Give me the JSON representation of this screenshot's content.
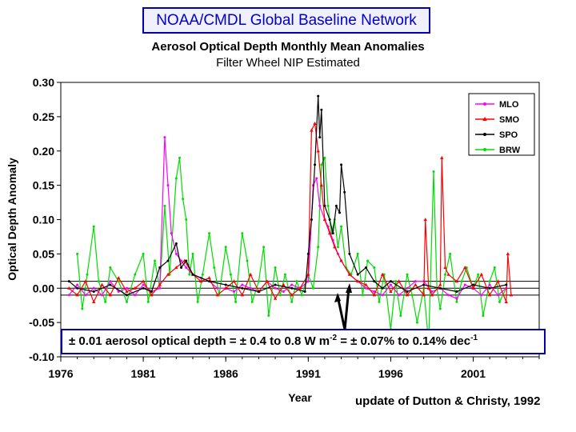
{
  "banner": "NOAA/CMDL Global Baseline Network",
  "footer": "update of Dutton & Christy, 1992",
  "annotation": {
    "p1": "± 0.01 aerosol optical depth = ± 0.4 to 0.8 W m",
    "sup1": "-2",
    "p2": " = ± 0.07% to 0.14% dec",
    "sup2": "-1"
  },
  "chart_data": {
    "type": "line",
    "title": "Aerosol Optical Depth Monthly Mean Anomalies",
    "subtitle": "Filter Wheel NIP Estimated",
    "xlabel": "Year",
    "ylabel": "Optical Depth Anomaly",
    "xlim": [
      1976,
      2005
    ],
    "ylim": [
      -0.1,
      0.3
    ],
    "xticks": [
      "1976",
      "1981",
      "1986",
      "1991",
      "1996",
      "2001"
    ],
    "yticks": [
      "0.30",
      "0.25",
      "0.20",
      "0.15",
      "0.10",
      "0.05",
      "0.00",
      "-0.05",
      "-0.10"
    ],
    "band": [
      -0.01,
      0.01
    ],
    "legend_position": "top-right",
    "colors": {
      "MLO": "#ff00ff",
      "SMO": "#ff0000",
      "SPO": "#000000",
      "BRW": "#00dd00",
      "frame": "#0000b0"
    },
    "series": [
      {
        "name": "MLO",
        "x": [
          1976.5,
          1977,
          1977.5,
          1978,
          1978.5,
          1979,
          1979.5,
          1980,
          1980.5,
          1981,
          1981.5,
          1982,
          1982.3,
          1982.5,
          1982.7,
          1983,
          1983.3,
          1983.6,
          1984,
          1984.5,
          1985,
          1985.5,
          1986,
          1986.5,
          1987,
          1987.5,
          1988,
          1988.5,
          1989,
          1989.5,
          1990,
          1990.5,
          1991,
          1991.3,
          1991.5,
          1991.7,
          1992,
          1992.2,
          1992.5,
          1992.8,
          1993,
          1993.5,
          1994,
          1994.5,
          1995,
          1995.5,
          1996,
          1996.5,
          1997,
          1997.5,
          1998,
          1998.5,
          1999,
          1999.5,
          2000,
          2000.5,
          2001,
          2001.5,
          2002,
          2002.5,
          2003
        ],
        "y": [
          -0.01,
          0.005,
          -0.01,
          0.0,
          -0.01,
          0.01,
          -0.005,
          0.0,
          -0.01,
          0.005,
          -0.005,
          0.0,
          0.22,
          0.15,
          0.08,
          0.05,
          0.04,
          0.03,
          0.02,
          0.015,
          0.01,
          0.0,
          0.0,
          -0.005,
          0.005,
          0.0,
          -0.005,
          0.01,
          0.0,
          -0.005,
          0.005,
          0.0,
          0.01,
          0.15,
          0.16,
          0.12,
          0.1,
          0.09,
          0.07,
          0.05,
          0.04,
          0.02,
          0.01,
          0.0,
          -0.005,
          -0.01,
          0.005,
          -0.01,
          0.0,
          0.01,
          0.01,
          -0.005,
          0.0,
          -0.01,
          -0.015,
          0.005,
          0.0,
          -0.01,
          0.005,
          -0.01,
          0.0
        ]
      },
      {
        "name": "SMO",
        "x": [
          1976.5,
          1977,
          1977.5,
          1978,
          1978.5,
          1979,
          1979.5,
          1980,
          1980.5,
          1981,
          1981.5,
          1982,
          1982.5,
          1983,
          1983.5,
          1984,
          1984.5,
          1985,
          1985.5,
          1986,
          1986.5,
          1987,
          1987.5,
          1988,
          1988.5,
          1989,
          1989.5,
          1990,
          1990.5,
          1991,
          1991.2,
          1991.4,
          1991.6,
          1991.8,
          1992,
          1992.3,
          1992.6,
          1993,
          1993.5,
          1994,
          1994.5,
          1995,
          1995.5,
          1996,
          1996.5,
          1997,
          1997.5,
          1998,
          1998.1,
          1998.3,
          1998.5,
          1999,
          1999.1,
          1999.3,
          1999.5,
          2000,
          2000.5,
          2001,
          2001.5,
          2002,
          2002.5,
          2003,
          2003.1,
          2003.3
        ],
        "y": [
          0.0,
          -0.01,
          0.01,
          -0.02,
          0.005,
          -0.01,
          0.015,
          -0.005,
          0.0,
          0.01,
          -0.01,
          0.005,
          0.02,
          0.03,
          0.04,
          0.02,
          0.01,
          0.015,
          -0.01,
          0.0,
          0.01,
          -0.01,
          0.02,
          -0.005,
          0.01,
          -0.015,
          0.005,
          -0.01,
          0.0,
          0.02,
          0.23,
          0.24,
          0.2,
          0.15,
          0.1,
          0.08,
          0.06,
          0.04,
          0.02,
          0.01,
          0.005,
          -0.01,
          0.02,
          -0.005,
          0.01,
          -0.01,
          0.005,
          -0.01,
          0.1,
          0.0,
          -0.01,
          0.005,
          0.19,
          0.03,
          0.02,
          0.01,
          0.03,
          0.0,
          0.02,
          -0.01,
          0.01,
          -0.02,
          0.05,
          -0.01
        ]
      },
      {
        "name": "SPO",
        "x": [
          1976.5,
          1977,
          1978,
          1979,
          1980,
          1981,
          1981.5,
          1982,
          1982.5,
          1983,
          1983.3,
          1983.6,
          1984,
          1985,
          1986,
          1987,
          1988,
          1989,
          1990,
          1990.8,
          1991,
          1991.2,
          1991.4,
          1991.6,
          1991.7,
          1991.8,
          1992,
          1992.3,
          1992.5,
          1992.7,
          1992.9,
          1993,
          1993.2,
          1993.5,
          1994,
          1994.5,
          1995,
          1995.5,
          1996,
          1997,
          1998,
          1999,
          2000,
          2001,
          2002,
          2003
        ],
        "y": [
          0.01,
          0.0,
          -0.005,
          0.005,
          -0.01,
          0.0,
          -0.005,
          0.03,
          0.04,
          0.065,
          0.03,
          0.04,
          0.02,
          0.01,
          0.005,
          0.0,
          -0.005,
          0.005,
          0.0,
          -0.005,
          0.05,
          0.1,
          0.18,
          0.28,
          0.22,
          0.26,
          0.12,
          0.1,
          0.08,
          0.12,
          0.11,
          0.18,
          0.14,
          0.05,
          0.02,
          0.03,
          0.01,
          0.0,
          0.01,
          -0.005,
          0.005,
          0.0,
          -0.005,
          0.005,
          0.0,
          0.005
        ]
      },
      {
        "name": "BRW",
        "x": [
          1977,
          1977.3,
          1977.6,
          1978,
          1978.3,
          1978.7,
          1979,
          1979.5,
          1980,
          1980.5,
          1981,
          1981.3,
          1981.7,
          1982,
          1982.3,
          1982.6,
          1983,
          1983.2,
          1983.4,
          1983.6,
          1983.8,
          1984,
          1984.3,
          1984.6,
          1985,
          1985.3,
          1985.6,
          1986,
          1986.3,
          1986.6,
          1987,
          1987.3,
          1987.6,
          1988,
          1988.3,
          1988.6,
          1989,
          1989.3,
          1989.6,
          1990,
          1990.3,
          1990.6,
          1991,
          1991.3,
          1991.6,
          1991.8,
          1992,
          1992.2,
          1992.4,
          1992.6,
          1992.8,
          1993,
          1993.3,
          1993.6,
          1994,
          1994.3,
          1994.6,
          1995,
          1995.3,
          1995.6,
          1996,
          1996.3,
          1996.6,
          1997,
          1997.3,
          1997.6,
          1998,
          1998.3,
          1998.6,
          1998.8,
          1999,
          1999.3,
          1999.6,
          2000,
          2000.3,
          2000.6,
          2001,
          2001.3,
          2001.6,
          2002,
          2002.3,
          2002.6,
          2003
        ],
        "y": [
          0.05,
          -0.03,
          0.02,
          0.09,
          0.01,
          -0.02,
          0.03,
          0.01,
          -0.02,
          0.02,
          0.05,
          -0.02,
          0.04,
          0.0,
          0.12,
          0.02,
          0.16,
          0.19,
          0.13,
          0.1,
          0.02,
          0.05,
          -0.02,
          0.02,
          0.08,
          0.03,
          -0.01,
          0.06,
          0.02,
          -0.02,
          0.08,
          0.04,
          -0.02,
          0.01,
          0.06,
          -0.04,
          0.03,
          -0.01,
          0.02,
          -0.02,
          0.01,
          -0.01,
          0.02,
          0.0,
          0.06,
          0.18,
          0.19,
          0.12,
          0.08,
          0.1,
          0.06,
          0.09,
          0.03,
          0.02,
          0.05,
          -0.01,
          0.04,
          0.03,
          -0.02,
          0.02,
          -0.06,
          0.01,
          -0.04,
          0.02,
          -0.01,
          -0.05,
          0.0,
          -0.08,
          0.17,
          0.0,
          -0.03,
          0.02,
          0.05,
          -0.02,
          0.01,
          0.03,
          0.0,
          0.02,
          -0.04,
          0.01,
          0.03,
          -0.02,
          0.0
        ]
      }
    ]
  }
}
